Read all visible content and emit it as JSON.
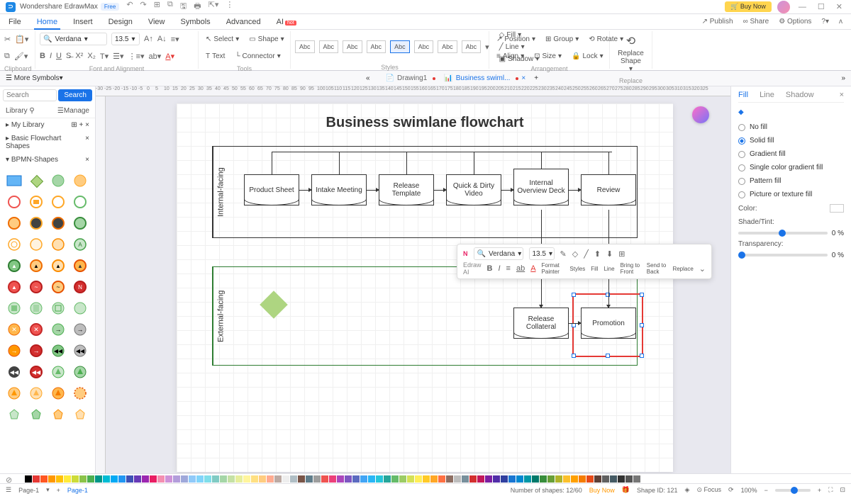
{
  "app": {
    "name": "Wondershare EdrawMax",
    "badge": "Free",
    "buynow": "Buy Now"
  },
  "menu": {
    "items": [
      "File",
      "Home",
      "Insert",
      "Design",
      "View",
      "Symbols",
      "Advanced",
      "AI"
    ],
    "active": 1,
    "right": [
      "Publish",
      "Share",
      "Options"
    ]
  },
  "ribbon": {
    "clipboard": "Clipboard",
    "font": {
      "name": "Verdana",
      "size": "13.5",
      "label": "Font and Alignment"
    },
    "tools": {
      "select": "Select",
      "shape": "Shape",
      "text": "Text",
      "connector": "Connector",
      "label": "Tools"
    },
    "styles": {
      "abc": "Abc",
      "fill": "Fill",
      "line": "Line",
      "shadow": "Shadow",
      "label": "Styles"
    },
    "arrange": {
      "position": "Position",
      "align": "Align",
      "group": "Group",
      "size": "Size",
      "rotate": "Rotate",
      "lock": "Lock",
      "label": "Arrangement"
    },
    "replace": {
      "title": "Replace\nShape",
      "label": "Replace"
    }
  },
  "doctabs": {
    "more": "More Symbols",
    "tab1": "Drawing1",
    "tab2": "Business swiml..."
  },
  "left": {
    "search_ph": "Search",
    "search_btn": "Search",
    "library": "Library",
    "manage": "Manage",
    "mylib": "My Library",
    "basic": "Basic Flowchart Shapes",
    "bpmn": "BPMN-Shapes"
  },
  "chart": {
    "title": "Business swimlane flowchart",
    "lane1": "Internal-facing",
    "lane2": "External-facing",
    "n1": "Product Sheet",
    "n2": "Intake Meeting",
    "n3": "Release Template",
    "n4": "Quick & Dirty Video",
    "n5": "Internal Overview Deck",
    "n6": "Review",
    "n7": "Release Collateral",
    "n8": "Promotion"
  },
  "float": {
    "font": "Verdana",
    "size": "13.5",
    "ai": "Edraw AI",
    "format": "Format Painter",
    "styles": "Styles",
    "fill": "Fill",
    "line": "Line",
    "front": "Bring to Front",
    "back": "Send to Back",
    "replace": "Replace"
  },
  "right": {
    "fill": "Fill",
    "line": "Line",
    "shadow": "Shadow",
    "nofill": "No fill",
    "solid": "Solid fill",
    "gradient": "Gradient fill",
    "single": "Single color gradient fill",
    "pattern": "Pattern fill",
    "picture": "Picture or texture fill",
    "color": "Color:",
    "shade": "Shade/Tint:",
    "trans": "Transparency:",
    "pct": "0 %"
  },
  "status": {
    "page": "Page-1",
    "shapes": "Number of shapes: 12/60",
    "buy": "Buy Now",
    "shapeid": "Shape ID: 121",
    "focus": "Focus",
    "zoom": "100%"
  },
  "colorbar_colors": [
    "#ffffff",
    "#000000",
    "#e53935",
    "#ff5722",
    "#ff9800",
    "#ffc107",
    "#ffeb3b",
    "#cddc39",
    "#8bc34a",
    "#4caf50",
    "#009688",
    "#00bcd4",
    "#03a9f4",
    "#2196f3",
    "#3f51b5",
    "#673ab7",
    "#9c27b0",
    "#e91e63",
    "#f48fb1",
    "#ce93d8",
    "#b39ddb",
    "#9fa8da",
    "#90caf9",
    "#81d4fa",
    "#80deea",
    "#80cbc4",
    "#a5d6a7",
    "#c5e1a5",
    "#e6ee9c",
    "#fff59d",
    "#ffe082",
    "#ffcc80",
    "#ffab91",
    "#bcaaa4",
    "#eeeeee",
    "#b0bec5",
    "#795548",
    "#607d8b",
    "#9e9e9e",
    "#ef5350",
    "#ec407a",
    "#ab47bc",
    "#7e57c2",
    "#5c6bc0",
    "#42a5f5",
    "#29b6f6",
    "#26c6da",
    "#26a69a",
    "#66bb6a",
    "#9ccc65",
    "#d4e157",
    "#ffee58",
    "#ffca28",
    "#ffa726",
    "#ff7043",
    "#8d6e63",
    "#bdbdbd",
    "#78909c",
    "#d32f2f",
    "#c2185b",
    "#7b1fa2",
    "#512da8",
    "#303f9f",
    "#1976d2",
    "#0288d1",
    "#0097a7",
    "#00796b",
    "#388e3c",
    "#689f38",
    "#afb42b",
    "#fbc02d",
    "#ffa000",
    "#f57c00",
    "#e64a19",
    "#5d4037",
    "#616161",
    "#455a64",
    "#333333",
    "#555555",
    "#777777"
  ],
  "ruler_marks": [
    -30,
    -25,
    -20,
    -15,
    -10,
    -5,
    0,
    5,
    10,
    15,
    20,
    25,
    30,
    35,
    40,
    45,
    50,
    55,
    60,
    65,
    70,
    75,
    80,
    85,
    90,
    95,
    100,
    105,
    110,
    115,
    120,
    125,
    130,
    135,
    140,
    145,
    150,
    155,
    160,
    165,
    170,
    175,
    180,
    185,
    190,
    195,
    200,
    205,
    210,
    215,
    220,
    225,
    230,
    235,
    240,
    245,
    250,
    255,
    260,
    265,
    270,
    275,
    280,
    285,
    290,
    295,
    300,
    305,
    310,
    315,
    320,
    325
  ]
}
